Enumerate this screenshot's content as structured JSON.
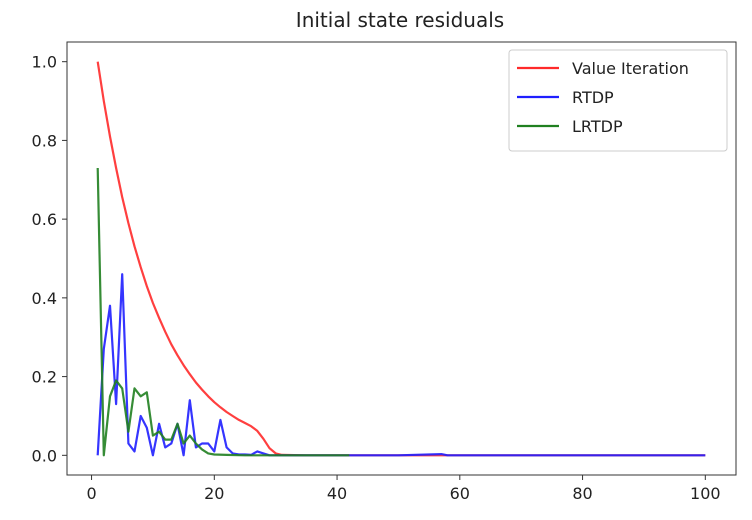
{
  "chart_data": {
    "type": "line",
    "title": "Initial state residuals",
    "xlabel": "",
    "ylabel": "",
    "xlim": [
      -4,
      105
    ],
    "ylim": [
      -0.05,
      1.05
    ],
    "xticks": [
      0,
      20,
      40,
      60,
      80,
      100
    ],
    "yticks": [
      0.0,
      0.2,
      0.4,
      0.6,
      0.8,
      1.0
    ],
    "xtick_labels": [
      "0",
      "20",
      "40",
      "60",
      "80",
      "100"
    ],
    "ytick_labels": [
      "0.0",
      "0.2",
      "0.4",
      "0.6",
      "0.8",
      "1.0"
    ],
    "grid": false,
    "legend_position": "top-right",
    "series": [
      {
        "name": "Value Iteration",
        "color": "#ff2a2a",
        "x": [
          1,
          2,
          3,
          4,
          5,
          6,
          7,
          8,
          9,
          10,
          11,
          12,
          13,
          14,
          15,
          16,
          17,
          18,
          19,
          20,
          21,
          22,
          23,
          24,
          25,
          26,
          27,
          28,
          29,
          30,
          31,
          35,
          40,
          50,
          60,
          70,
          80,
          90,
          100
        ],
        "y": [
          1.0,
          0.9,
          0.81,
          0.73,
          0.656,
          0.59,
          0.531,
          0.478,
          0.43,
          0.387,
          0.349,
          0.314,
          0.282,
          0.254,
          0.229,
          0.206,
          0.185,
          0.167,
          0.15,
          0.135,
          0.122,
          0.11,
          0.1,
          0.09,
          0.082,
          0.074,
          0.062,
          0.042,
          0.018,
          0.005,
          0.001,
          0.0,
          0.0,
          0.0,
          0.0,
          0.0,
          0.0,
          0.0,
          0.0
        ]
      },
      {
        "name": "RTDP",
        "color": "#1f1fff",
        "x": [
          1,
          2,
          3,
          4,
          5,
          6,
          7,
          8,
          9,
          10,
          11,
          12,
          13,
          14,
          15,
          16,
          17,
          18,
          19,
          20,
          21,
          22,
          23,
          24,
          25,
          26,
          27,
          28,
          29,
          30,
          35,
          40,
          50,
          57,
          58,
          60,
          70,
          80,
          90,
          100
        ],
        "y": [
          0.0,
          0.27,
          0.38,
          0.13,
          0.46,
          0.03,
          0.01,
          0.1,
          0.07,
          0.0,
          0.08,
          0.02,
          0.03,
          0.08,
          0.0,
          0.14,
          0.02,
          0.03,
          0.03,
          0.01,
          0.09,
          0.02,
          0.005,
          0.002,
          0.002,
          0.001,
          0.01,
          0.005,
          0.0,
          0.0,
          0.0,
          0.0,
          0.0,
          0.003,
          0.0,
          0.0,
          0.0,
          0.0,
          0.0,
          0.0
        ]
      },
      {
        "name": "LRTDP",
        "color": "#208020",
        "x": [
          1,
          2,
          3,
          4,
          5,
          6,
          7,
          8,
          9,
          10,
          11,
          12,
          13,
          14,
          15,
          16,
          17,
          18,
          19,
          20,
          22,
          25,
          30,
          35,
          40,
          42
        ],
        "y": [
          0.73,
          0.0,
          0.15,
          0.19,
          0.17,
          0.06,
          0.17,
          0.15,
          0.16,
          0.05,
          0.06,
          0.04,
          0.04,
          0.08,
          0.03,
          0.05,
          0.03,
          0.015,
          0.005,
          0.002,
          0.001,
          0.0,
          0.0,
          0.0,
          0.0,
          0.0
        ]
      }
    ]
  }
}
